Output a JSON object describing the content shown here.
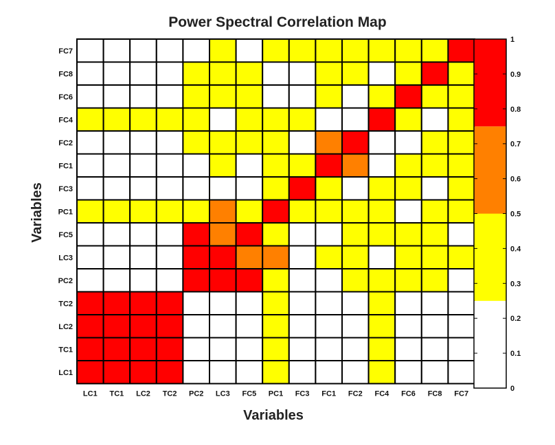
{
  "chart_data": {
    "type": "heatmap",
    "title": "Power Spectral Correlation Map",
    "xlabel": "Variables",
    "ylabel": "Variables",
    "x_categories": [
      "LC1",
      "TC1",
      "LC2",
      "TC2",
      "PC2",
      "LC3",
      "FC5",
      "PC1",
      "FC3",
      "FC1",
      "FC2",
      "FC4",
      "FC6",
      "FC8",
      "FC7"
    ],
    "y_categories_top_to_bottom": [
      "FC7",
      "FC8",
      "FC6",
      "FC4",
      "FC2",
      "FC1",
      "FC3",
      "PC1",
      "FC5",
      "LC3",
      "PC2",
      "TC2",
      "LC2",
      "TC1",
      "LC1"
    ],
    "y_tick_labels_top_to_bottom": [
      "FC7",
      "FC8",
      "FC6",
      "FC4",
      "FC2",
      "FC1",
      "FC3",
      "PC1",
      "FC5",
      "LC3",
      "PC2",
      "TC2",
      "LC2",
      "TC1",
      "LC1"
    ],
    "levels_legend": {
      "0": "0 - 0.25",
      "1": "0.25 - 0.5",
      "2": "0.5 - 0.75",
      "3": "0.75 - 1"
    },
    "level_colors": [
      "#ffffff",
      "#ffff00",
      "#ff8000",
      "#ff0000"
    ],
    "cells_top_to_bottom": [
      [
        0,
        0,
        0,
        0,
        0,
        1,
        0,
        1,
        1,
        1,
        1,
        1,
        1,
        1,
        3
      ],
      [
        0,
        0,
        0,
        0,
        1,
        1,
        1,
        0,
        0,
        1,
        1,
        0,
        1,
        3,
        1
      ],
      [
        0,
        0,
        0,
        0,
        1,
        1,
        1,
        0,
        0,
        1,
        0,
        1,
        3,
        1,
        1
      ],
      [
        1,
        1,
        1,
        1,
        1,
        0,
        1,
        1,
        1,
        0,
        0,
        3,
        1,
        0,
        1
      ],
      [
        0,
        0,
        0,
        0,
        1,
        1,
        1,
        1,
        0,
        2,
        3,
        0,
        0,
        1,
        1
      ],
      [
        0,
        0,
        0,
        0,
        0,
        1,
        0,
        1,
        1,
        3,
        2,
        0,
        1,
        1,
        1
      ],
      [
        0,
        0,
        0,
        0,
        0,
        0,
        0,
        1,
        3,
        1,
        0,
        1,
        1,
        0,
        1
      ],
      [
        1,
        1,
        1,
        1,
        1,
        2,
        1,
        3,
        1,
        1,
        1,
        1,
        0,
        1,
        1
      ],
      [
        0,
        0,
        0,
        0,
        3,
        2,
        3,
        1,
        0,
        0,
        1,
        1,
        1,
        1,
        0
      ],
      [
        0,
        0,
        0,
        0,
        3,
        3,
        2,
        2,
        0,
        1,
        1,
        0,
        1,
        1,
        1
      ],
      [
        0,
        0,
        0,
        0,
        3,
        3,
        3,
        1,
        0,
        0,
        1,
        1,
        1,
        1,
        0
      ],
      [
        3,
        3,
        3,
        3,
        0,
        0,
        0,
        1,
        0,
        0,
        0,
        1,
        0,
        0,
        0
      ],
      [
        3,
        3,
        3,
        3,
        0,
        0,
        0,
        1,
        0,
        0,
        0,
        1,
        0,
        0,
        0
      ],
      [
        3,
        3,
        3,
        3,
        0,
        0,
        0,
        1,
        0,
        0,
        0,
        1,
        0,
        0,
        0
      ],
      [
        3,
        3,
        3,
        3,
        0,
        0,
        0,
        1,
        0,
        0,
        0,
        1,
        0,
        0,
        0
      ]
    ],
    "colorbar": {
      "ylim": [
        0,
        1
      ],
      "ticks": [
        "0",
        "0.1",
        "0.2",
        "0.3",
        "0.4",
        "0.5",
        "0.6",
        "0.7",
        "0.8",
        "0.9",
        "1"
      ],
      "segments": [
        {
          "from": 0,
          "to": 0.25,
          "color": "#ffffff"
        },
        {
          "from": 0.25,
          "to": 0.5,
          "color": "#ffff00"
        },
        {
          "from": 0.5,
          "to": 0.75,
          "color": "#ff8000"
        },
        {
          "from": 0.75,
          "to": 1,
          "color": "#ff0000"
        }
      ]
    },
    "grid": true
  }
}
